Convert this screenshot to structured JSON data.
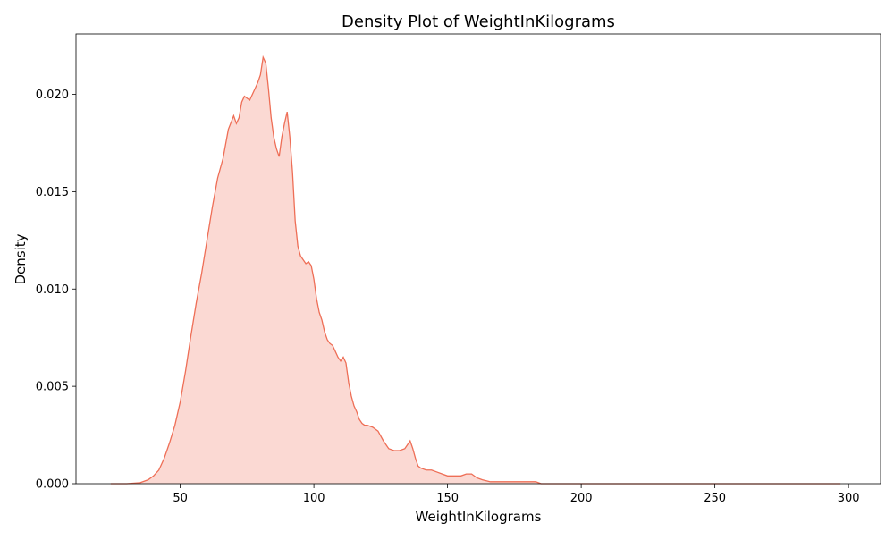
{
  "chart_data": {
    "type": "area",
    "title": "Density Plot of WeightInKilograms",
    "xlabel": "WeightInKilograms",
    "ylabel": "Density",
    "xlim": [
      11,
      312
    ],
    "ylim": [
      0,
      0.0231
    ],
    "xticks": [
      50,
      100,
      150,
      200,
      250,
      300
    ],
    "xtick_labels": [
      "50",
      "100",
      "150",
      "200",
      "250",
      "300"
    ],
    "yticks": [
      0,
      0.005,
      0.01,
      0.015,
      0.02
    ],
    "ytick_labels": [
      "0.000",
      "0.005",
      "0.010",
      "0.015",
      "0.020"
    ],
    "grid": false,
    "legend": "none",
    "line_color": "#ee6e56",
    "fill_color": "#fbd9d3",
    "series": [
      {
        "x": [
          24,
          30,
          35,
          38,
          40,
          42,
          44,
          46,
          48,
          50,
          52,
          54,
          56,
          58,
          60,
          62,
          64,
          66,
          68,
          70,
          71,
          72,
          73,
          74,
          75,
          76,
          78,
          79,
          80,
          81,
          82,
          83,
          84,
          85,
          86,
          87,
          88,
          89,
          90,
          91,
          92,
          93,
          94,
          95,
          96,
          97,
          98,
          99,
          100,
          101,
          102,
          103,
          104,
          105,
          106,
          107,
          108,
          109,
          110,
          111,
          112,
          113,
          114,
          115,
          116,
          117,
          118,
          119,
          120,
          122,
          124,
          126,
          128,
          130,
          132,
          134,
          135,
          136,
          137,
          138,
          139,
          140,
          142,
          144,
          146,
          148,
          150,
          152,
          155,
          157,
          159,
          161,
          163,
          166,
          170,
          175,
          178,
          181,
          183,
          185,
          190,
          200,
          220,
          250,
          270,
          297
        ],
        "y": [
          0.0,
          0.0,
          5e-05,
          0.0002,
          0.0004,
          0.0007,
          0.0013,
          0.0021,
          0.003,
          0.0042,
          0.0058,
          0.0076,
          0.0093,
          0.0108,
          0.0125,
          0.0142,
          0.0157,
          0.0167,
          0.0182,
          0.0189,
          0.0185,
          0.0188,
          0.0196,
          0.0199,
          0.0198,
          0.0197,
          0.0203,
          0.0206,
          0.021,
          0.0219,
          0.0216,
          0.0203,
          0.0188,
          0.0178,
          0.0172,
          0.0168,
          0.0178,
          0.0185,
          0.0191,
          0.0178,
          0.016,
          0.0135,
          0.0122,
          0.0117,
          0.0115,
          0.0113,
          0.0114,
          0.0112,
          0.0105,
          0.0095,
          0.0088,
          0.0084,
          0.0078,
          0.0074,
          0.0072,
          0.0071,
          0.0068,
          0.0065,
          0.0063,
          0.0065,
          0.0062,
          0.0052,
          0.0045,
          0.004,
          0.0037,
          0.0033,
          0.0031,
          0.003,
          0.003,
          0.0029,
          0.0027,
          0.0022,
          0.0018,
          0.0017,
          0.0017,
          0.0018,
          0.002,
          0.0022,
          0.0018,
          0.0013,
          0.0009,
          0.0008,
          0.0007,
          0.0007,
          0.0006,
          0.0005,
          0.0004,
          0.0004,
          0.0004,
          0.0005,
          0.0005,
          0.0003,
          0.0002,
          0.0001,
          0.0001,
          0.0001,
          0.0001,
          0.0001,
          0.0001,
          0.0,
          0.0,
          0.0,
          0.0,
          0.0,
          0.0,
          0.0
        ]
      }
    ]
  }
}
